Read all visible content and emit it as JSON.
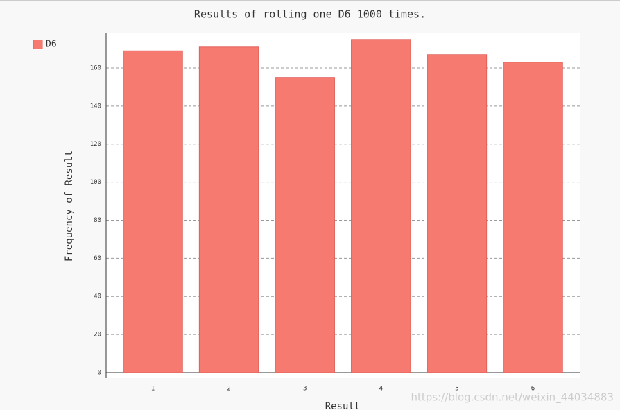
{
  "chart_data": {
    "type": "bar",
    "title": "Results of rolling one D6 1000 times.",
    "x_label": "Result",
    "y_label": "Frequency of Result",
    "categories": [
      "1",
      "2",
      "3",
      "4",
      "5",
      "6"
    ],
    "series": [
      {
        "name": "D6",
        "color": "#f67a6f",
        "values": [
          169,
          171,
          155,
          175,
          167,
          163
        ]
      }
    ],
    "ylim": [
      0,
      178
    ],
    "yticks": [
      0,
      20,
      40,
      60,
      80,
      100,
      120,
      140,
      160
    ],
    "grid": true,
    "legend": "top-left",
    "watermark": "https://blog.csdn.net/weixin_44034883"
  }
}
